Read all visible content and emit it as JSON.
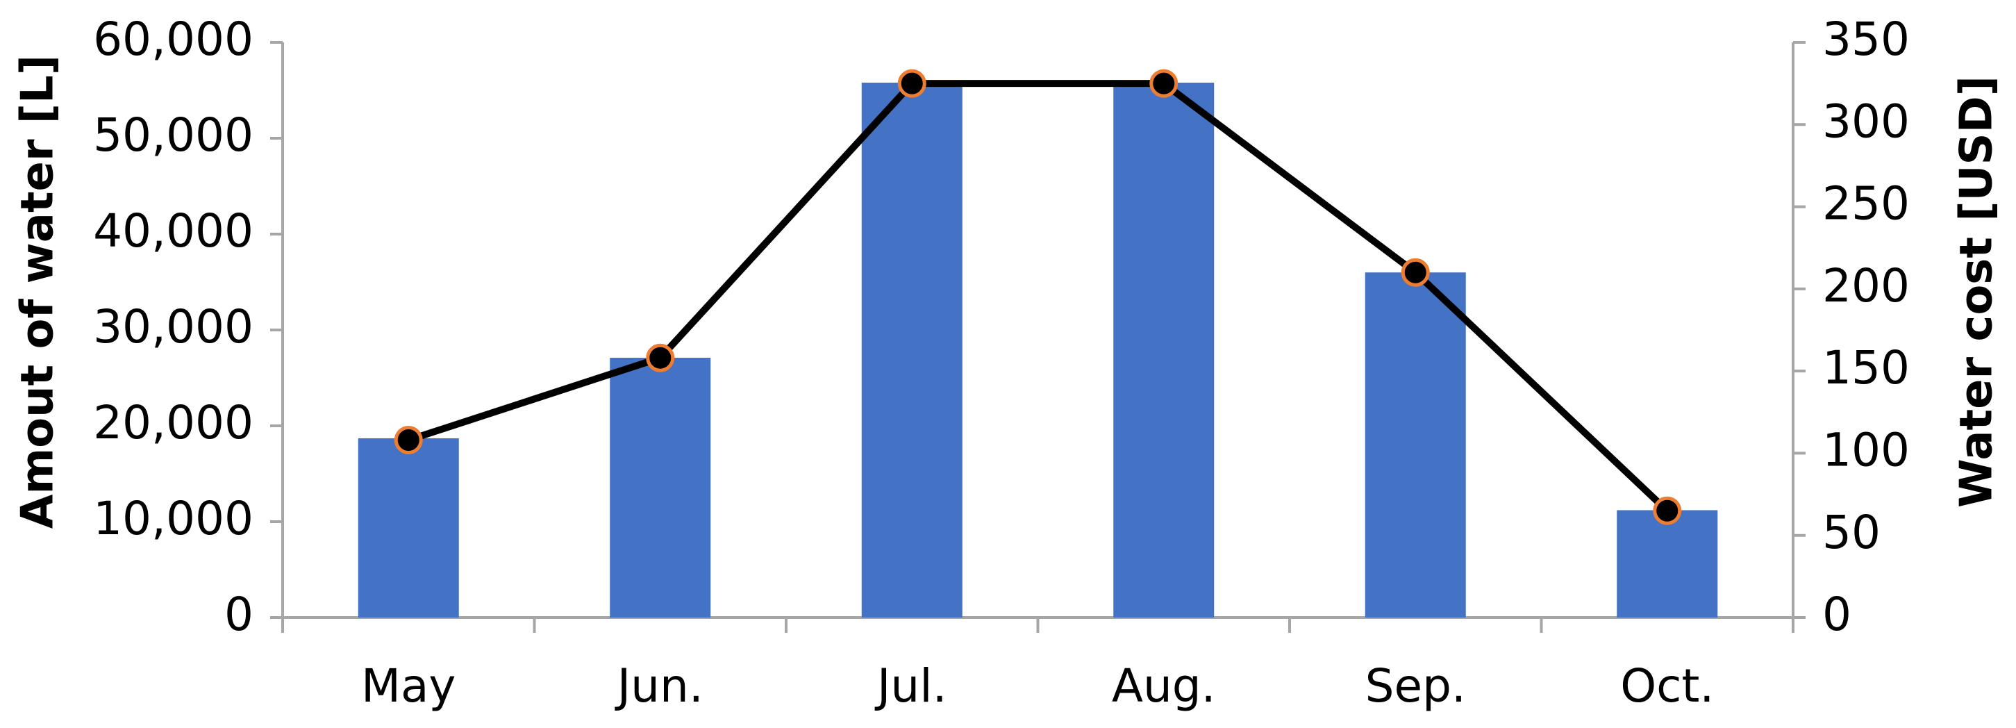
{
  "chart_data": {
    "type": "combo",
    "categories": [
      "May",
      "Jun.",
      "Jul.",
      "Aug.",
      "Sep.",
      "Oct."
    ],
    "y_label": "Amout of water [L]",
    "y2_label": "Water cost [USD]",
    "ylim": [
      0,
      60000
    ],
    "yticks": [
      0,
      {
        "value": 10000,
        "label": "10,000"
      },
      {
        "value": 20000,
        "label": "20,000"
      },
      {
        "value": 30000,
        "label": "30,000"
      },
      {
        "value": 40000,
        "label": "40,000"
      },
      {
        "value": 50000,
        "label": "50,000"
      },
      {
        "value": 60000,
        "label": "60,000"
      }
    ],
    "y2lim": [
      0,
      350
    ],
    "y2ticks": [
      0,
      50,
      100,
      150,
      200,
      250,
      300,
      350
    ],
    "grid": false,
    "series": [
      {
        "type": "bar",
        "color": "#4472c4",
        "values": [
          18700,
          27100,
          55800,
          55800,
          36000,
          11200
        ]
      },
      {
        "type": "line",
        "axis": "y2",
        "color": "#000000",
        "marker_edge": "#ed7d31",
        "values": [
          108,
          158,
          325,
          325,
          210,
          65
        ]
      }
    ]
  }
}
